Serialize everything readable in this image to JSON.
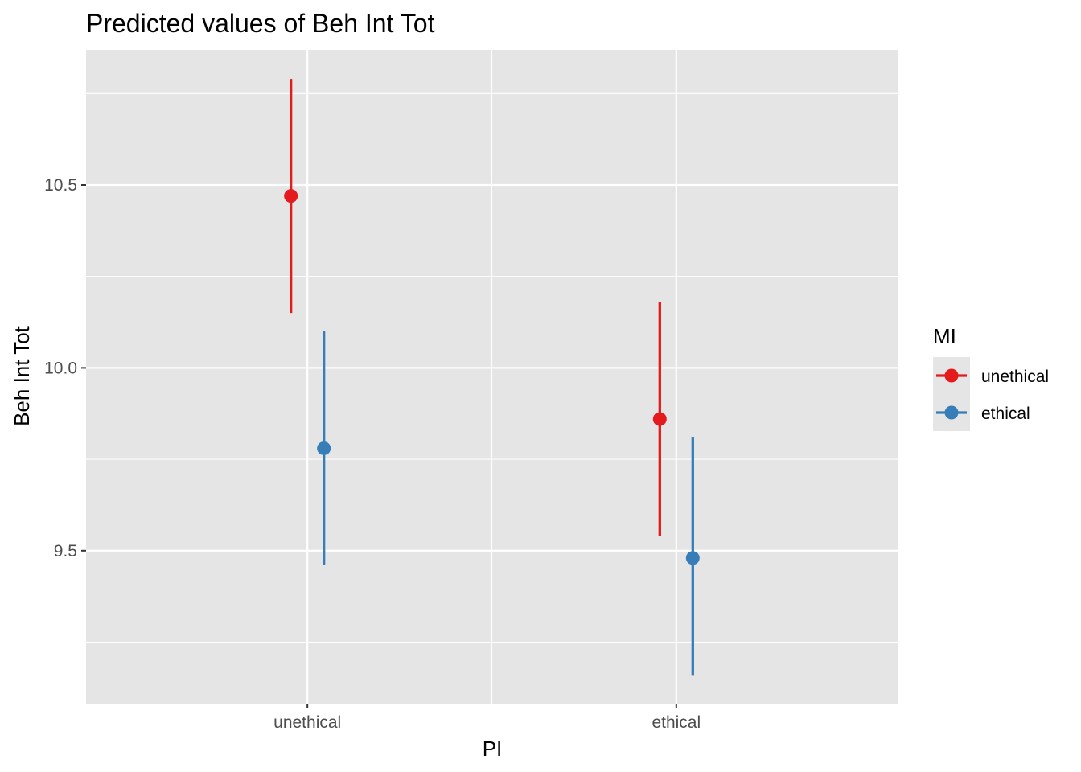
{
  "chart_data": {
    "type": "scatter",
    "subtype": "point-range (estimate with confidence interval)",
    "title": "Predicted values of Beh Int Tot",
    "xlabel": "PI",
    "ylabel": "Beh Int Tot",
    "categories": [
      "unethical",
      "ethical"
    ],
    "ylim": [
      9.16,
      10.94
    ],
    "yticks": [
      9.5,
      10.0,
      10.5
    ],
    "ytick_labels": [
      "9.5",
      "10.0",
      "10.5"
    ],
    "grid": true,
    "legend": {
      "title": "MI",
      "placement": "right"
    },
    "series": [
      {
        "name": "unethical",
        "color": "#e41a1c",
        "values": [
          10.47,
          9.86
        ],
        "lower": [
          10.15,
          9.54
        ],
        "upper": [
          10.79,
          10.18
        ]
      },
      {
        "name": "ethical",
        "color": "#377eb8",
        "values": [
          9.78,
          9.48
        ],
        "lower": [
          9.46,
          9.16
        ],
        "upper": [
          10.1,
          9.81
        ]
      }
    ]
  }
}
